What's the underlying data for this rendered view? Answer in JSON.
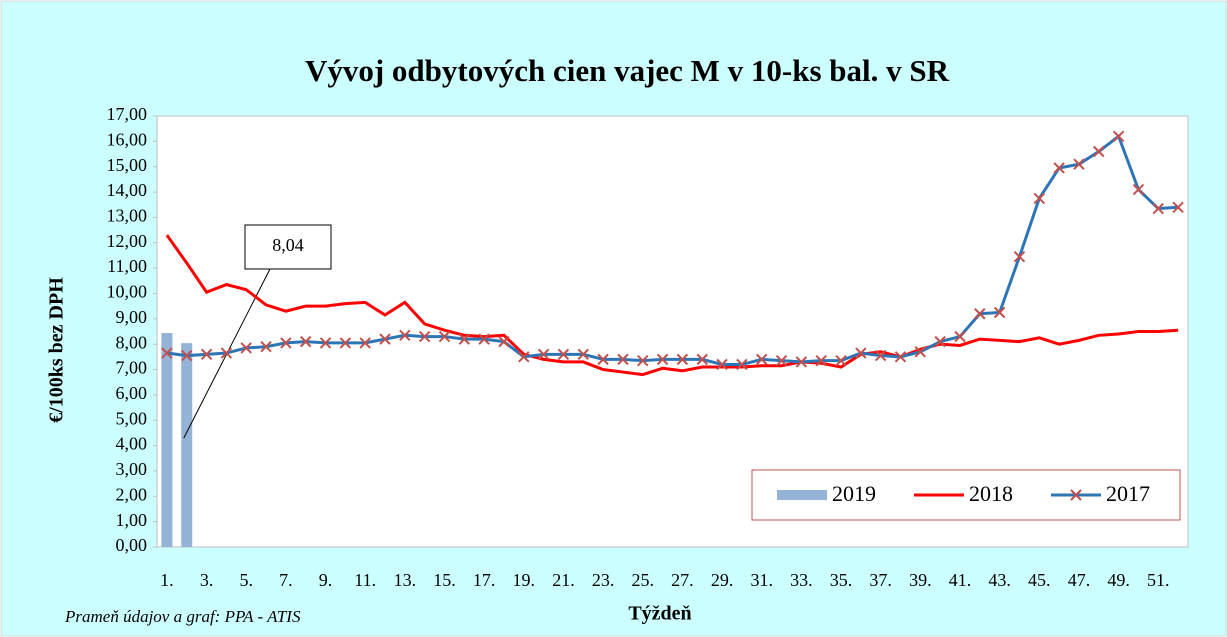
{
  "chart_data": {
    "type": "line",
    "title": "Vývoj odbytových cien vajec M v 10-ks bal. v SR",
    "x_label": "Týždeň",
    "y_label": "€/100ks bez DPH",
    "source": "Prameň údajov a graf: PPA - ATIS",
    "categories": [
      "1.",
      null,
      "3.",
      null,
      "5.",
      null,
      "7.",
      null,
      "9.",
      null,
      "11.",
      null,
      "13.",
      null,
      "15.",
      null,
      "17.",
      null,
      "19.",
      null,
      "21.",
      null,
      "23.",
      null,
      "25.",
      null,
      "27.",
      null,
      "29.",
      null,
      "31.",
      null,
      "33.",
      null,
      "35.",
      null,
      "37.",
      null,
      "39.",
      null,
      "41.",
      null,
      "43.",
      null,
      "45.",
      null,
      "47.",
      null,
      "49.",
      null,
      "51.",
      null
    ],
    "ylim": [
      0,
      17
    ],
    "yticks": [
      {
        "value": 0,
        "label": "0,00"
      },
      {
        "value": 1,
        "label": "1,00"
      },
      {
        "value": 2,
        "label": "2,00"
      },
      {
        "value": 3,
        "label": "3,00"
      },
      {
        "value": 4,
        "label": "4,00"
      },
      {
        "value": 5,
        "label": "5,00"
      },
      {
        "value": 6,
        "label": "6,00"
      },
      {
        "value": 7,
        "label": "7,00"
      },
      {
        "value": 8,
        "label": "8,00"
      },
      {
        "value": 9,
        "label": "9,00"
      },
      {
        "value": 10,
        "label": "10,00"
      },
      {
        "value": 11,
        "label": "11,00"
      },
      {
        "value": 12,
        "label": "12,00"
      },
      {
        "value": 13,
        "label": "13,00"
      },
      {
        "value": 14,
        "label": "14,00"
      },
      {
        "value": 15,
        "label": "15,00"
      },
      {
        "value": 16,
        "label": "16,00"
      },
      {
        "value": 17,
        "label": "17,00"
      }
    ],
    "grid": false,
    "legend": "lower right",
    "series": [
      {
        "name": "2019",
        "type": "bar",
        "color": "#95b3d7",
        "values": [
          8.44,
          8.04,
          null,
          null,
          null,
          null,
          null,
          null,
          null,
          null,
          null,
          null,
          null,
          null,
          null,
          null,
          null,
          null,
          null,
          null,
          null,
          null,
          null,
          null,
          null,
          null,
          null,
          null,
          null,
          null,
          null,
          null,
          null,
          null,
          null,
          null,
          null,
          null,
          null,
          null,
          null,
          null,
          null,
          null,
          null,
          null,
          null,
          null,
          null,
          null,
          null,
          null
        ],
        "value_labels": [
          null,
          "8,04",
          null,
          null,
          null,
          null,
          null,
          null,
          null,
          null,
          null,
          null,
          null,
          null,
          null,
          null,
          null,
          null,
          null,
          null,
          null,
          null,
          null,
          null,
          null,
          null,
          null,
          null,
          null,
          null,
          null,
          null,
          null,
          null,
          null,
          null,
          null,
          null,
          null,
          null,
          null,
          null,
          null,
          null,
          null,
          null,
          null,
          null,
          null,
          null,
          null,
          null
        ]
      },
      {
        "name": "2018",
        "type": "line",
        "color": "#ff0000",
        "values": [
          12.3,
          11.2,
          10.05,
          10.35,
          10.15,
          9.55,
          9.3,
          9.5,
          9.5,
          9.6,
          9.65,
          9.15,
          9.65,
          8.8,
          8.55,
          8.35,
          8.3,
          8.35,
          7.6,
          7.4,
          7.3,
          7.3,
          7.0,
          6.9,
          6.8,
          7.05,
          6.95,
          7.1,
          7.1,
          7.1,
          7.15,
          7.15,
          7.3,
          7.25,
          7.1,
          7.6,
          7.7,
          7.5,
          7.8,
          8.0,
          7.95,
          8.2,
          8.15,
          8.1,
          8.25,
          8.0,
          8.15,
          8.35,
          8.4,
          8.5,
          8.5,
          8.55
        ]
      },
      {
        "name": "2017",
        "type": "line",
        "color": "#2e75b6",
        "marker_color": "#c0504d",
        "values": [
          7.65,
          7.55,
          7.6,
          7.65,
          7.85,
          7.9,
          8.05,
          8.1,
          8.05,
          8.05,
          8.05,
          8.2,
          8.35,
          8.3,
          8.3,
          8.2,
          8.2,
          8.1,
          7.5,
          7.6,
          7.6,
          7.6,
          7.4,
          7.4,
          7.35,
          7.4,
          7.4,
          7.4,
          7.2,
          7.2,
          7.4,
          7.35,
          7.3,
          7.35,
          7.35,
          7.65,
          7.55,
          7.5,
          7.7,
          8.1,
          8.3,
          9.2,
          9.25,
          11.45,
          13.75,
          14.95,
          15.1,
          15.6,
          16.2,
          14.1,
          13.35,
          13.4
        ]
      }
    ]
  }
}
